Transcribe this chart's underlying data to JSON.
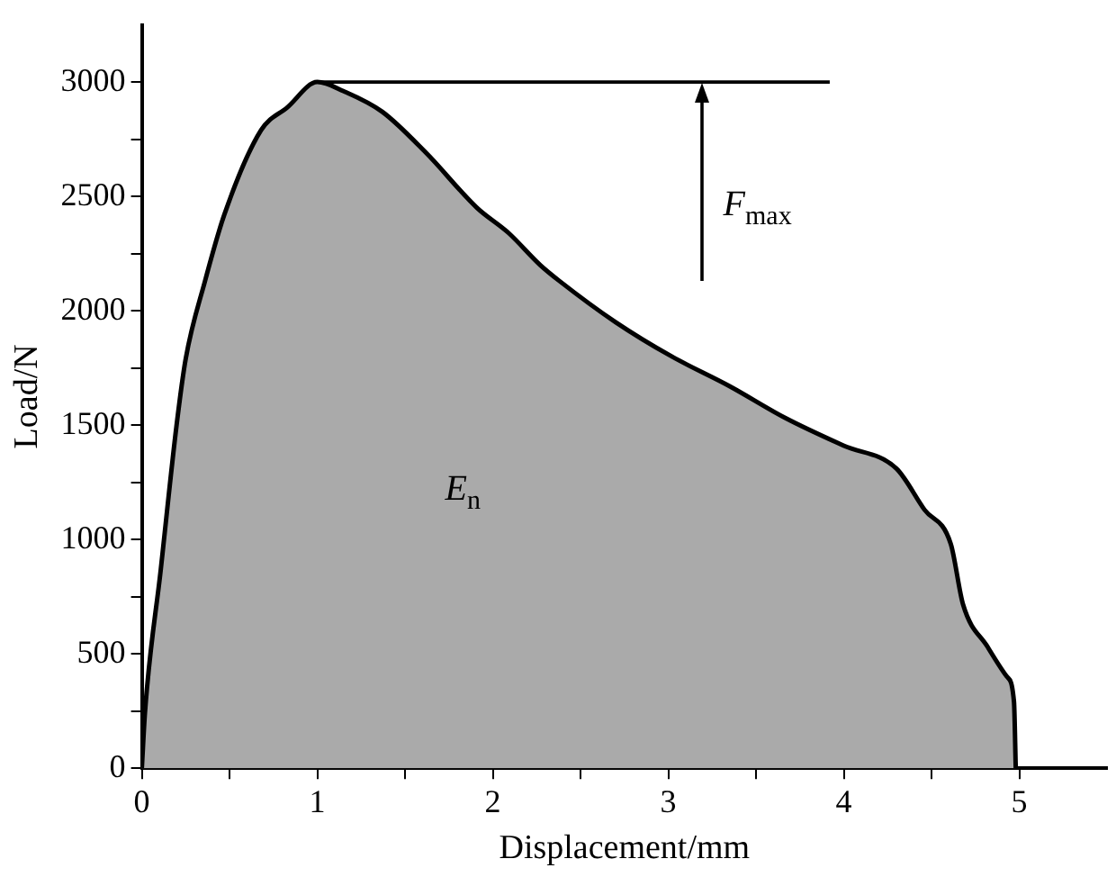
{
  "chart_data": {
    "type": "area",
    "xlabel": "Displacement/mm",
    "ylabel": "Load/N",
    "xlim": [
      0,
      5.5
    ],
    "xticks": [
      0,
      {
        "value": 0.5,
        "label": null
      },
      1,
      {
        "value": 1.5,
        "label": null
      },
      2,
      {
        "value": 2.5,
        "label": null
      },
      3,
      {
        "value": 3.5,
        "label": null
      },
      4,
      {
        "value": 4.5,
        "label": null
      },
      5
    ],
    "ylim": [
      0,
      3250
    ],
    "yticks": [
      0,
      {
        "value": 250,
        "label": null
      },
      500,
      {
        "value": 750,
        "label": null
      },
      1000,
      {
        "value": 1250,
        "label": null
      },
      1500,
      {
        "value": 1750,
        "label": null
      },
      2000,
      {
        "value": 2250,
        "label": null
      },
      2500,
      {
        "value": 2750,
        "label": null
      },
      3000
    ],
    "grid": false,
    "legend": false,
    "series": [
      {
        "color": "#aaaaaa",
        "x": [
          0,
          0.018,
          0.108,
          0.198,
          0.25,
          0.36,
          0.47,
          0.68,
          0.83,
          1.0,
          1.15,
          1.37,
          1.62,
          1.91,
          2.09,
          2.27,
          2.38,
          2.7,
          3.02,
          3.35,
          3.67,
          4.0,
          4.3,
          4.46,
          4.61,
          4.68,
          4.82,
          4.93,
          4.97,
          4.98
        ],
        "values": [
          0,
          245,
          870,
          1500,
          1790,
          2130,
          2420,
          2790,
          2890,
          3000,
          2960,
          2870,
          2690,
          2450,
          2340,
          2200,
          2130,
          1950,
          1800,
          1670,
          1530,
          1410,
          1310,
          1130,
          980,
          715,
          530,
          400,
          290,
          0
        ]
      },
      {
        "type": "line",
        "color": "#000000",
        "x": [
          1.0,
          3.92
        ],
        "values": [
          3000,
          3000
        ]
      }
    ],
    "annotations": [
      "F$_{max}$",
      "E$_{n}$"
    ]
  }
}
